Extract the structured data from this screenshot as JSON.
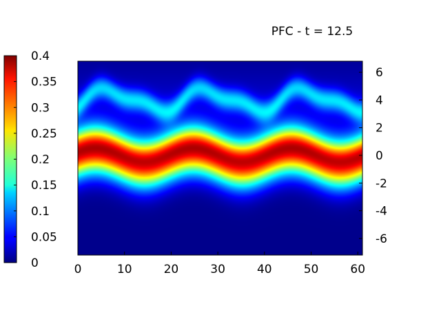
{
  "chart_data": {
    "type": "heatmap",
    "title": "PFC - t = 12.5",
    "xlabel": "",
    "ylabel": "",
    "xlim": [
      0,
      61
    ],
    "ylim": [
      -7.2,
      6.8
    ],
    "xticks": [
      "0",
      "10",
      "20",
      "30",
      "40",
      "50",
      "60"
    ],
    "xtick_values": [
      0,
      10,
      20,
      30,
      40,
      50,
      60
    ],
    "yticks": [
      "6",
      "4",
      "2",
      "0",
      "-2",
      "-4",
      "-6"
    ],
    "ytick_values": [
      6,
      4,
      2,
      0,
      -2,
      -4,
      -6
    ],
    "colorbar": {
      "range": [
        0,
        0.4
      ],
      "ticks": [
        "0.4",
        "0.35",
        "0.3",
        "0.25",
        "0.2",
        "0.15",
        "0.1",
        "0.05",
        "0"
      ],
      "tick_values": [
        0.4,
        0.35,
        0.3,
        0.25,
        0.2,
        0.15,
        0.1,
        0.05,
        0
      ],
      "colormap": "jet"
    },
    "field": {
      "description_values": [
        {
          "feature": "main band",
          "center_y": 0.0,
          "peak": 0.36,
          "wave_amplitude": 0.5,
          "wave_period": 21
        },
        {
          "feature": "upper band",
          "center_y": 4.0,
          "peak": 0.11,
          "wave_amplitude": 0.7,
          "wave_period": 21
        }
      ]
    },
    "grid": false,
    "colorbar_placement": "left"
  }
}
